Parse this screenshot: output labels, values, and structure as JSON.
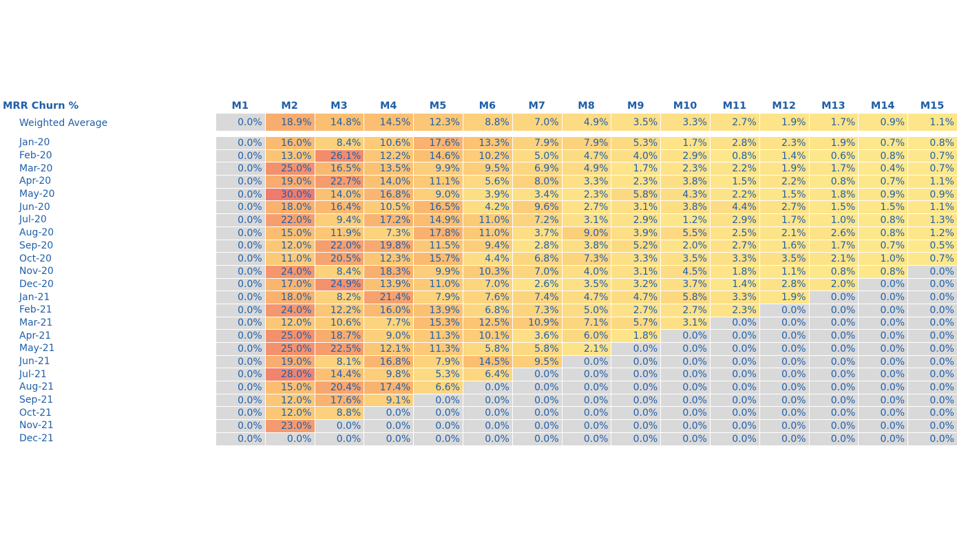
{
  "chart_data": {
    "type": "heatmap",
    "title": "MRR Churn %",
    "columns": [
      "M1",
      "M2",
      "M3",
      "M4",
      "M5",
      "M6",
      "M7",
      "M8",
      "M9",
      "M10",
      "M11",
      "M12",
      "M13",
      "M14",
      "M15"
    ],
    "weighted_average": {
      "label": "Weighted Average",
      "values": [
        "0.0%",
        "18.9%",
        "14.8%",
        "14.5%",
        "12.3%",
        "8.8%",
        "7.0%",
        "4.9%",
        "3.5%",
        "3.3%",
        "2.7%",
        "1.9%",
        "1.7%",
        "0.9%",
        "1.1%"
      ]
    },
    "rows": [
      {
        "label": "Jan-20",
        "values": [
          "0.0%",
          "16.0%",
          "8.4%",
          "10.6%",
          "17.6%",
          "13.3%",
          "7.9%",
          "7.9%",
          "5.3%",
          "1.7%",
          "2.8%",
          "2.3%",
          "1.9%",
          "0.7%",
          "0.8%"
        ]
      },
      {
        "label": "Feb-20",
        "values": [
          "0.0%",
          "13.0%",
          "26.1%",
          "12.2%",
          "14.6%",
          "10.2%",
          "5.0%",
          "4.7%",
          "4.0%",
          "2.9%",
          "0.8%",
          "1.4%",
          "0.6%",
          "0.8%",
          "0.7%"
        ]
      },
      {
        "label": "Mar-20",
        "values": [
          "0.0%",
          "25.0%",
          "16.5%",
          "13.5%",
          "9.9%",
          "9.5%",
          "6.9%",
          "4.9%",
          "1.7%",
          "2.3%",
          "2.2%",
          "1.9%",
          "1.7%",
          "0.4%",
          "0.7%"
        ]
      },
      {
        "label": "Apr-20",
        "values": [
          "0.0%",
          "19.0%",
          "22.7%",
          "14.0%",
          "11.1%",
          "5.6%",
          "8.0%",
          "3.3%",
          "2.3%",
          "3.8%",
          "1.5%",
          "2.2%",
          "0.8%",
          "0.7%",
          "1.1%"
        ]
      },
      {
        "label": "May-20",
        "values": [
          "0.0%",
          "30.0%",
          "14.0%",
          "16.8%",
          "9.0%",
          "3.9%",
          "3.4%",
          "2.3%",
          "5.8%",
          "4.3%",
          "2.2%",
          "1.5%",
          "1.8%",
          "0.9%",
          "0.9%"
        ]
      },
      {
        "label": "Jun-20",
        "values": [
          "0.0%",
          "18.0%",
          "16.4%",
          "10.5%",
          "16.5%",
          "4.2%",
          "9.6%",
          "2.7%",
          "3.1%",
          "3.8%",
          "4.4%",
          "2.7%",
          "1.5%",
          "1.5%",
          "1.1%"
        ]
      },
      {
        "label": "Jul-20",
        "values": [
          "0.0%",
          "22.0%",
          "9.4%",
          "17.2%",
          "14.9%",
          "11.0%",
          "7.2%",
          "3.1%",
          "2.9%",
          "1.2%",
          "2.9%",
          "1.7%",
          "1.0%",
          "0.8%",
          "1.3%"
        ]
      },
      {
        "label": "Aug-20",
        "values": [
          "0.0%",
          "15.0%",
          "11.9%",
          "7.3%",
          "17.8%",
          "11.0%",
          "3.7%",
          "9.0%",
          "3.9%",
          "5.5%",
          "2.5%",
          "2.1%",
          "2.6%",
          "0.8%",
          "1.2%"
        ]
      },
      {
        "label": "Sep-20",
        "values": [
          "0.0%",
          "12.0%",
          "22.0%",
          "19.8%",
          "11.5%",
          "9.4%",
          "2.8%",
          "3.8%",
          "5.2%",
          "2.0%",
          "2.7%",
          "1.6%",
          "1.7%",
          "0.7%",
          "0.5%"
        ]
      },
      {
        "label": "Oct-20",
        "values": [
          "0.0%",
          "11.0%",
          "20.5%",
          "12.3%",
          "15.7%",
          "4.4%",
          "6.8%",
          "7.3%",
          "3.3%",
          "3.5%",
          "3.3%",
          "3.5%",
          "2.1%",
          "1.0%",
          "0.7%"
        ]
      },
      {
        "label": "Nov-20",
        "values": [
          "0.0%",
          "24.0%",
          "8.4%",
          "18.3%",
          "9.9%",
          "10.3%",
          "7.0%",
          "4.0%",
          "3.1%",
          "4.5%",
          "1.8%",
          "1.1%",
          "0.8%",
          "0.8%",
          "0.0%"
        ]
      },
      {
        "label": "Dec-20",
        "values": [
          "0.0%",
          "17.0%",
          "24.9%",
          "13.9%",
          "11.0%",
          "7.0%",
          "2.6%",
          "3.5%",
          "3.2%",
          "3.7%",
          "1.4%",
          "2.8%",
          "2.0%",
          "0.0%",
          "0.0%"
        ]
      },
      {
        "label": "Jan-21",
        "values": [
          "0.0%",
          "18.0%",
          "8.2%",
          "21.4%",
          "7.9%",
          "7.6%",
          "7.4%",
          "4.7%",
          "4.7%",
          "5.8%",
          "3.3%",
          "1.9%",
          "0.0%",
          "0.0%",
          "0.0%"
        ]
      },
      {
        "label": "Feb-21",
        "values": [
          "0.0%",
          "24.0%",
          "12.2%",
          "16.0%",
          "13.9%",
          "6.8%",
          "7.3%",
          "5.0%",
          "2.7%",
          "2.7%",
          "2.3%",
          "0.0%",
          "0.0%",
          "0.0%",
          "0.0%"
        ]
      },
      {
        "label": "Mar-21",
        "values": [
          "0.0%",
          "12.0%",
          "10.6%",
          "7.7%",
          "15.3%",
          "12.5%",
          "10.9%",
          "7.1%",
          "5.7%",
          "3.1%",
          "0.0%",
          "0.0%",
          "0.0%",
          "0.0%",
          "0.0%"
        ]
      },
      {
        "label": "Apr-21",
        "values": [
          "0.0%",
          "25.0%",
          "18.7%",
          "9.0%",
          "11.3%",
          "10.1%",
          "3.6%",
          "6.0%",
          "1.8%",
          "0.0%",
          "0.0%",
          "0.0%",
          "0.0%",
          "0.0%",
          "0.0%"
        ]
      },
      {
        "label": "May-21",
        "values": [
          "0.0%",
          "25.0%",
          "22.5%",
          "12.1%",
          "11.3%",
          "5.8%",
          "5.8%",
          "2.1%",
          "0.0%",
          "0.0%",
          "0.0%",
          "0.0%",
          "0.0%",
          "0.0%",
          "0.0%"
        ]
      },
      {
        "label": "Jun-21",
        "values": [
          "0.0%",
          "19.0%",
          "8.1%",
          "16.8%",
          "7.9%",
          "14.5%",
          "9.5%",
          "0.0%",
          "0.0%",
          "0.0%",
          "0.0%",
          "0.0%",
          "0.0%",
          "0.0%",
          "0.0%"
        ]
      },
      {
        "label": "Jul-21",
        "values": [
          "0.0%",
          "28.0%",
          "14.4%",
          "9.8%",
          "5.3%",
          "6.4%",
          "0.0%",
          "0.0%",
          "0.0%",
          "0.0%",
          "0.0%",
          "0.0%",
          "0.0%",
          "0.0%",
          "0.0%"
        ]
      },
      {
        "label": "Aug-21",
        "values": [
          "0.0%",
          "15.0%",
          "20.4%",
          "17.4%",
          "6.6%",
          "0.0%",
          "0.0%",
          "0.0%",
          "0.0%",
          "0.0%",
          "0.0%",
          "0.0%",
          "0.0%",
          "0.0%",
          "0.0%"
        ]
      },
      {
        "label": "Sep-21",
        "values": [
          "0.0%",
          "12.0%",
          "17.6%",
          "9.1%",
          "0.0%",
          "0.0%",
          "0.0%",
          "0.0%",
          "0.0%",
          "0.0%",
          "0.0%",
          "0.0%",
          "0.0%",
          "0.0%",
          "0.0%"
        ]
      },
      {
        "label": "Oct-21",
        "values": [
          "0.0%",
          "12.0%",
          "8.8%",
          "0.0%",
          "0.0%",
          "0.0%",
          "0.0%",
          "0.0%",
          "0.0%",
          "0.0%",
          "0.0%",
          "0.0%",
          "0.0%",
          "0.0%",
          "0.0%"
        ]
      },
      {
        "label": "Nov-21",
        "values": [
          "0.0%",
          "23.0%",
          "0.0%",
          "0.0%",
          "0.0%",
          "0.0%",
          "0.0%",
          "0.0%",
          "0.0%",
          "0.0%",
          "0.0%",
          "0.0%",
          "0.0%",
          "0.0%",
          "0.0%"
        ]
      },
      {
        "label": "Dec-21",
        "values": [
          "0.0%",
          "0.0%",
          "0.0%",
          "0.0%",
          "0.0%",
          "0.0%",
          "0.0%",
          "0.0%",
          "0.0%",
          "0.0%",
          "0.0%",
          "0.0%",
          "0.0%",
          "0.0%",
          "0.0%"
        ]
      }
    ],
    "colors": {
      "text": "#1f5ea8",
      "zero": "#d9d9d9",
      "low": "#fde98c",
      "mid": "#fbbe70",
      "high": "#f07b6c"
    }
  }
}
